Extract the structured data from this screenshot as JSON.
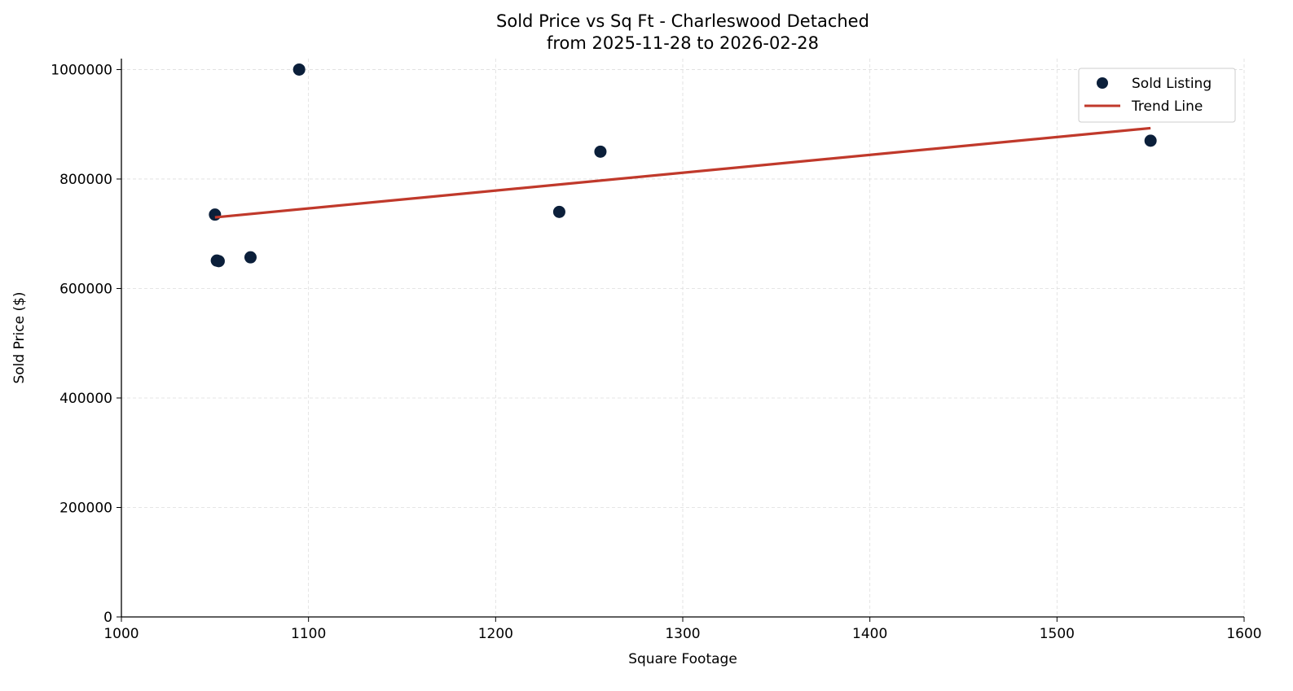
{
  "chart_data": {
    "type": "scatter",
    "title": "Sold Price vs Sq Ft - Charleswood Detached",
    "subtitle": "from 2025-11-28 to 2026-02-28",
    "xlabel": "Square Footage",
    "ylabel": "Sold Price ($)",
    "xlim": [
      1000,
      1600
    ],
    "ylim": [
      0,
      1020000
    ],
    "xticks": [
      1000,
      1100,
      1200,
      1300,
      1400,
      1500,
      1600
    ],
    "yticks": [
      0,
      200000,
      400000,
      600000,
      800000,
      1000000
    ],
    "grid": true,
    "legend_position": "top-right",
    "series": [
      {
        "name": "Sold Listing",
        "kind": "scatter",
        "color": "#0b1f3a",
        "points": [
          {
            "x": 1050,
            "y": 735000
          },
          {
            "x": 1051,
            "y": 651000
          },
          {
            "x": 1052,
            "y": 650000
          },
          {
            "x": 1069,
            "y": 657000
          },
          {
            "x": 1095,
            "y": 1000000
          },
          {
            "x": 1234,
            "y": 740000
          },
          {
            "x": 1256,
            "y": 850000
          },
          {
            "x": 1550,
            "y": 870000
          }
        ]
      },
      {
        "name": "Trend Line",
        "kind": "line",
        "color": "#c0392b",
        "points": [
          {
            "x": 1050,
            "y": 730000
          },
          {
            "x": 1550,
            "y": 893000
          }
        ]
      }
    ]
  }
}
